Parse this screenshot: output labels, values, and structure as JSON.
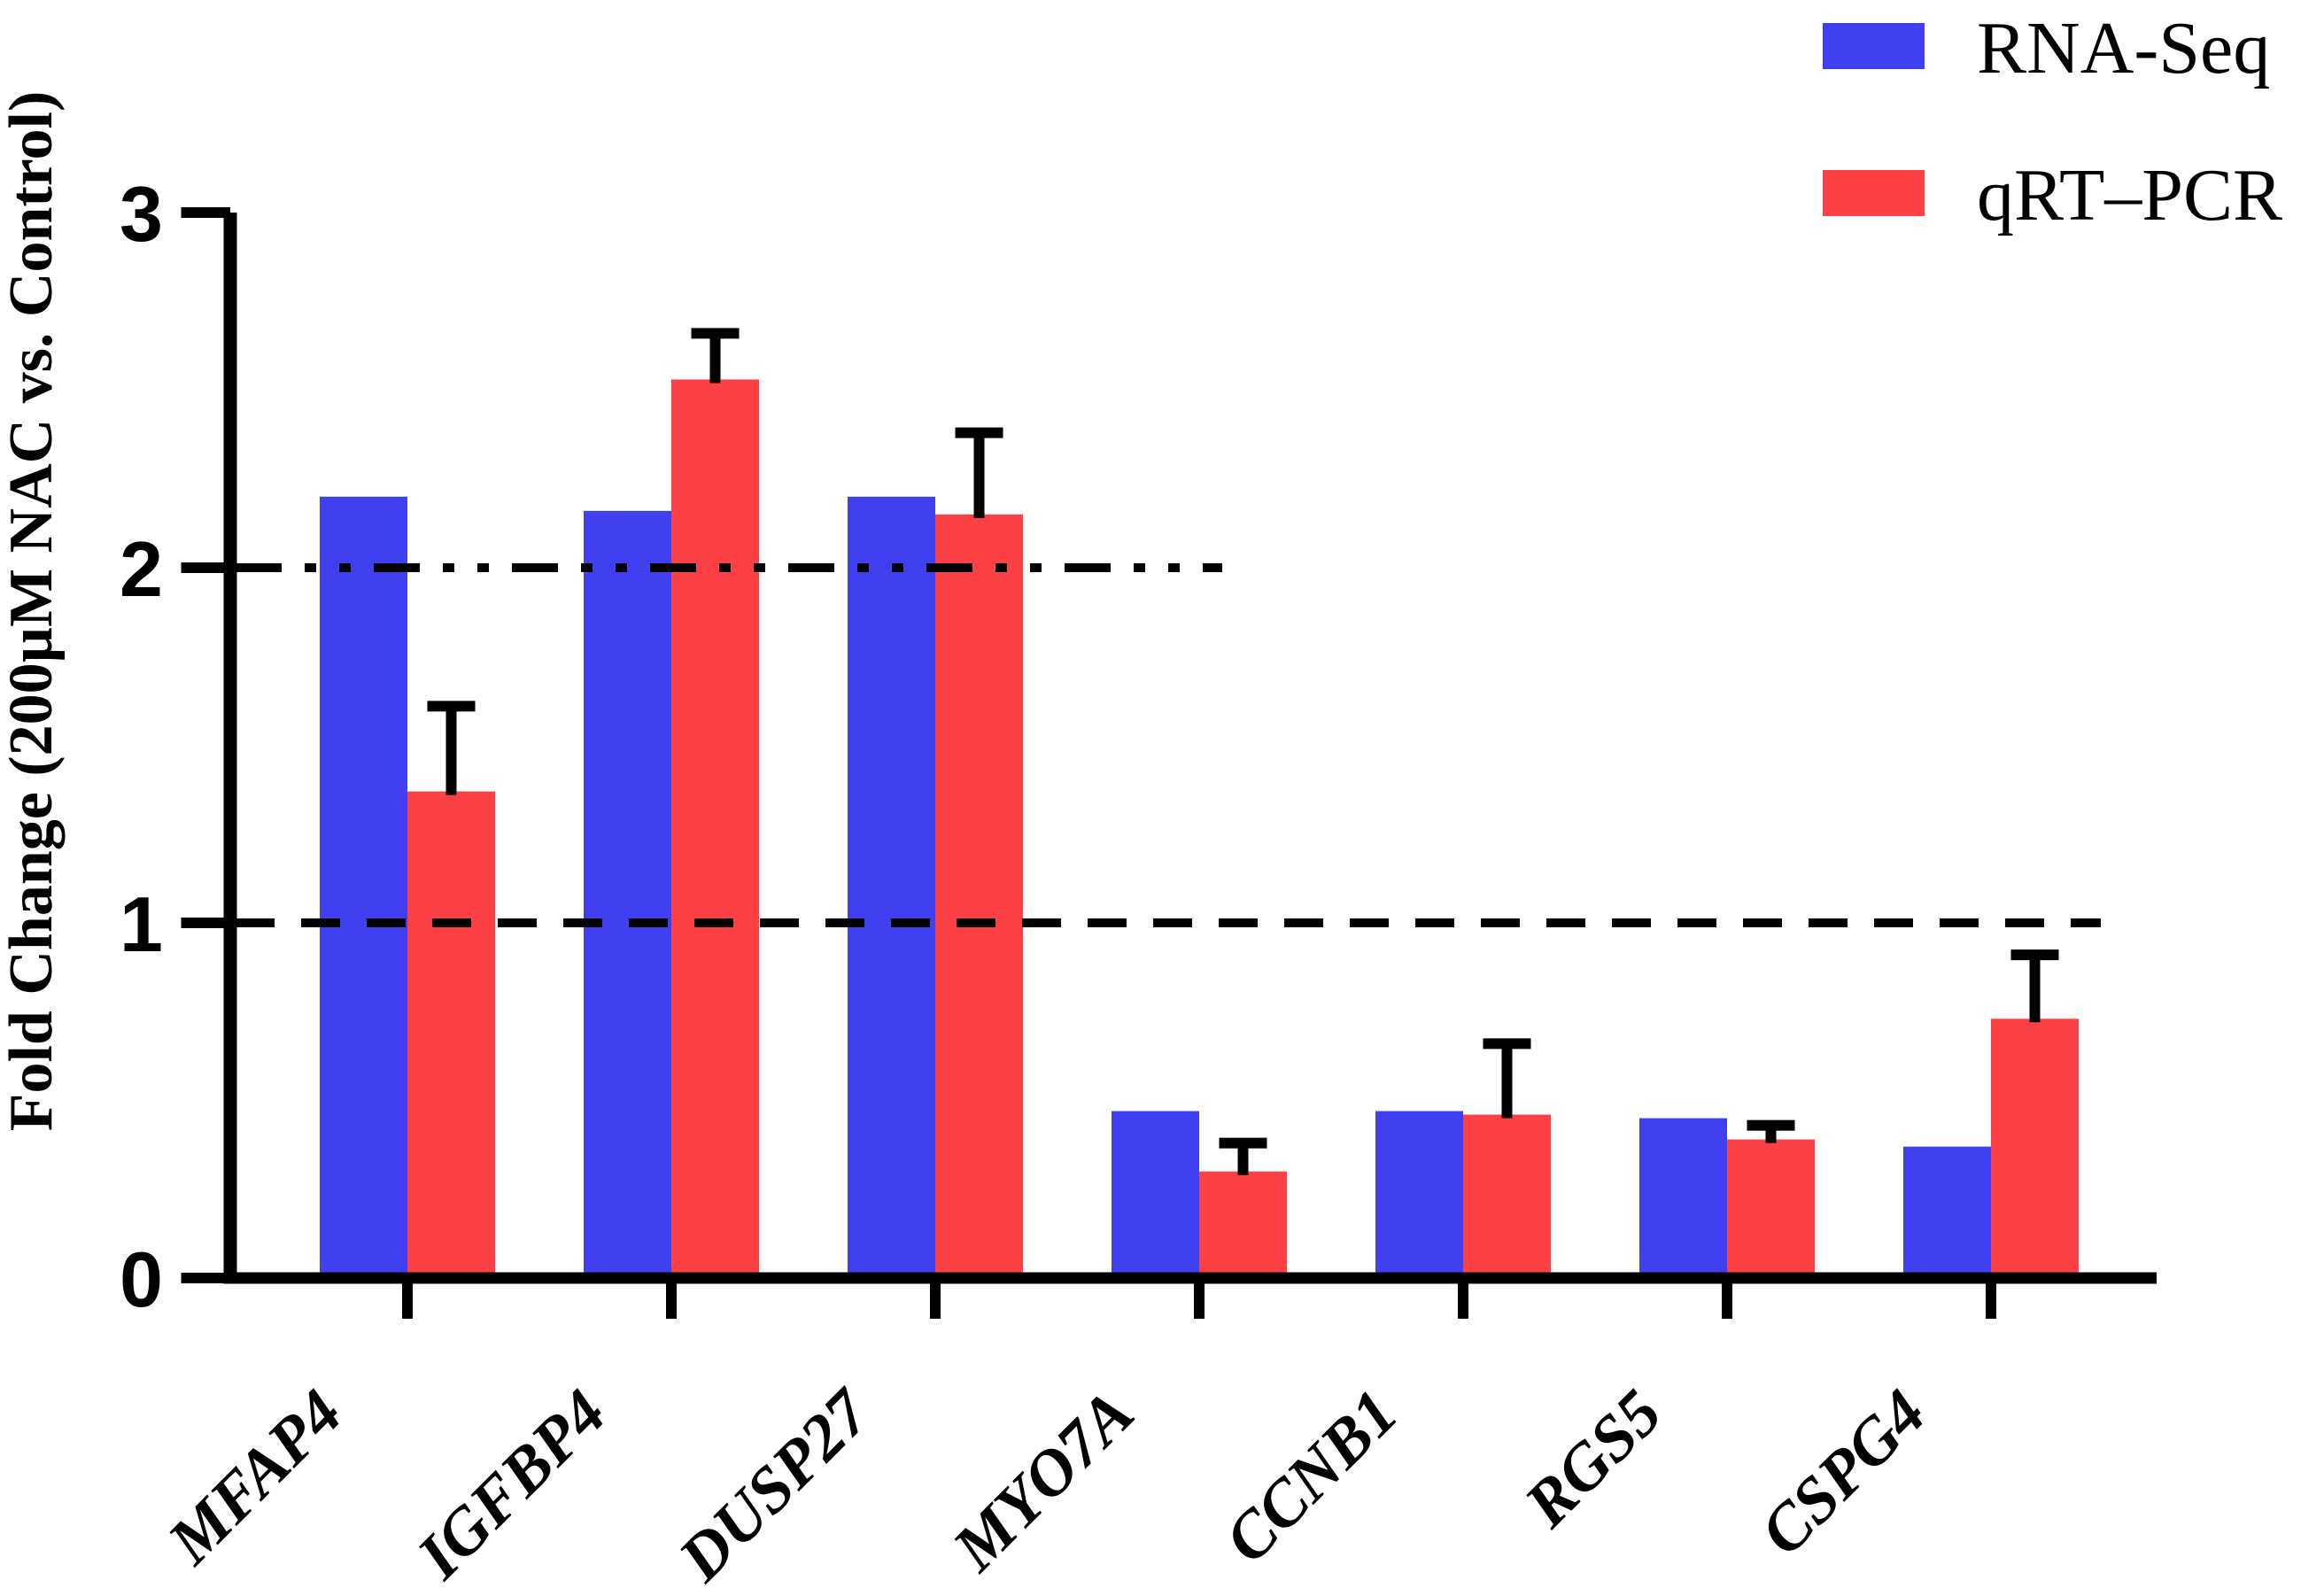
{
  "figure": {
    "background": "#FFFFFF",
    "axis_color": "#000000",
    "text_color": "#000000"
  },
  "chart_data": {
    "type": "bar",
    "title": "",
    "ylabel": "Fold Change (200µM NAC vs. Control)",
    "xlabel": "",
    "categories": [
      "MFAP4",
      "IGFBP4",
      "DUSP27",
      "MYO7A",
      "CCNB1",
      "RGS5",
      "CSPG4"
    ],
    "series": [
      {
        "name": "RNA-Seq",
        "color": "#4040F0",
        "values": [
          2.2,
          2.16,
          2.2,
          0.47,
          0.47,
          0.45,
          0.37
        ]
      },
      {
        "name": "qRT–PCR",
        "color": "#FC4146",
        "values": [
          1.37,
          2.53,
          2.15,
          0.3,
          0.46,
          0.39,
          0.73
        ],
        "errors_up": [
          0.24,
          0.13,
          0.23,
          0.08,
          0.2,
          0.04,
          0.18
        ]
      }
    ],
    "ylim": [
      0,
      3
    ],
    "yticks": [
      0,
      1,
      2,
      3
    ],
    "reference_lines": [
      {
        "y": 1,
        "style": "dashed",
        "extent": "full"
      },
      {
        "y": 2,
        "style": "dash-dot-dot",
        "extent": "partial"
      }
    ],
    "grid": false,
    "legend_position": "top-right",
    "error_bars": "upper only, qRT-PCR series only"
  }
}
